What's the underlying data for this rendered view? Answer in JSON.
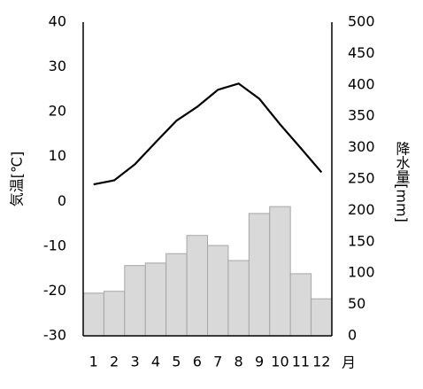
{
  "chart_data": {
    "type": "bar",
    "x_label": "月",
    "y_label": "気温[℃]",
    "y2_label": "降水量[mm]",
    "categories": [
      "1",
      "2",
      "3",
      "4",
      "5",
      "6",
      "7",
      "8",
      "9",
      "10",
      "11",
      "12"
    ],
    "series": [
      {
        "type": "bar",
        "axis": "y2",
        "color": "#d9d9d9",
        "values": [
          68,
          71,
          112,
          116,
          131,
          160,
          144,
          120,
          195,
          206,
          99,
          59
        ]
      },
      {
        "type": "line",
        "axis": "y",
        "color": "#000000",
        "values": [
          3.8,
          4.7,
          8.3,
          13.2,
          18.0,
          21.1,
          24.9,
          26.3,
          22.9,
          17.2,
          11.9,
          6.5
        ]
      }
    ],
    "ylim": [
      -30,
      40
    ],
    "yticks": [
      -30,
      -20,
      -10,
      0,
      10,
      20,
      30,
      40
    ],
    "y2lim": [
      0,
      500
    ],
    "y2ticks": [
      0,
      50,
      100,
      150,
      200,
      250,
      300,
      350,
      400,
      450,
      500
    ]
  }
}
